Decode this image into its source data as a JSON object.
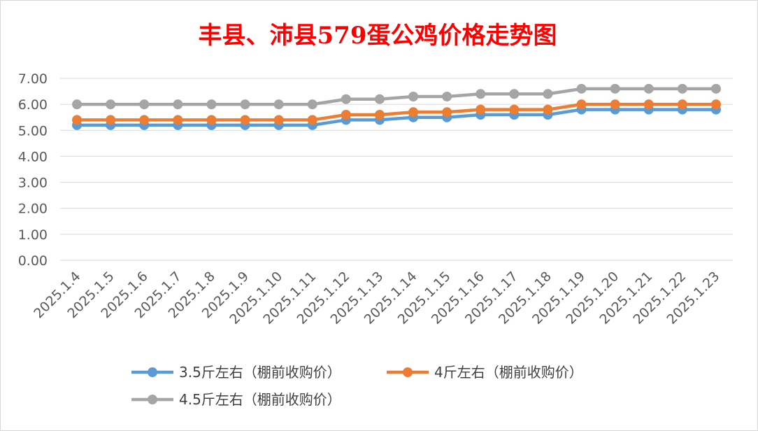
{
  "chart_data": {
    "type": "line",
    "title": "丰县、沛县579蛋公鸡价格走势图",
    "title_color": "#ff0000",
    "xlabel": "",
    "ylabel": "",
    "ylim": [
      0,
      7
    ],
    "ytick_step": 1,
    "ytick_labels": [
      "0.00",
      "1.00",
      "2.00",
      "3.00",
      "4.00",
      "5.00",
      "6.00",
      "7.00"
    ],
    "grid": true,
    "legend_position": "bottom",
    "categories": [
      "2025.1.4",
      "2025.1.5",
      "2025.1.6",
      "2025.1.7",
      "2025.1.8",
      "2025.1.9",
      "2025.1.10",
      "2025.1.11",
      "2025.1.12",
      "2025.1.13",
      "2025.1.14",
      "2025.1.15",
      "2025.1.16",
      "2025.1.17",
      "2025.1.18",
      "2025.1.19",
      "2025.1.20",
      "2025.1.21",
      "2025.1.22",
      "2025.1.23"
    ],
    "series": [
      {
        "name": "3.5斤左右（棚前收购价）",
        "color": "#5b9bd5",
        "values": [
          5.2,
          5.2,
          5.2,
          5.2,
          5.2,
          5.2,
          5.2,
          5.2,
          5.4,
          5.4,
          5.5,
          5.5,
          5.6,
          5.6,
          5.6,
          5.8,
          5.8,
          5.8,
          5.8,
          5.8
        ]
      },
      {
        "name": "4斤左右（棚前收购价）",
        "color": "#ed7d31",
        "values": [
          5.4,
          5.4,
          5.4,
          5.4,
          5.4,
          5.4,
          5.4,
          5.4,
          5.6,
          5.6,
          5.7,
          5.7,
          5.8,
          5.8,
          5.8,
          6.0,
          6.0,
          6.0,
          6.0,
          6.0
        ]
      },
      {
        "name": "4.5斤左右（棚前收购价）",
        "color": "#a5a5a5",
        "values": [
          6.0,
          6.0,
          6.0,
          6.0,
          6.0,
          6.0,
          6.0,
          6.0,
          6.2,
          6.2,
          6.3,
          6.3,
          6.4,
          6.4,
          6.4,
          6.6,
          6.6,
          6.6,
          6.6,
          6.6
        ]
      }
    ]
  }
}
